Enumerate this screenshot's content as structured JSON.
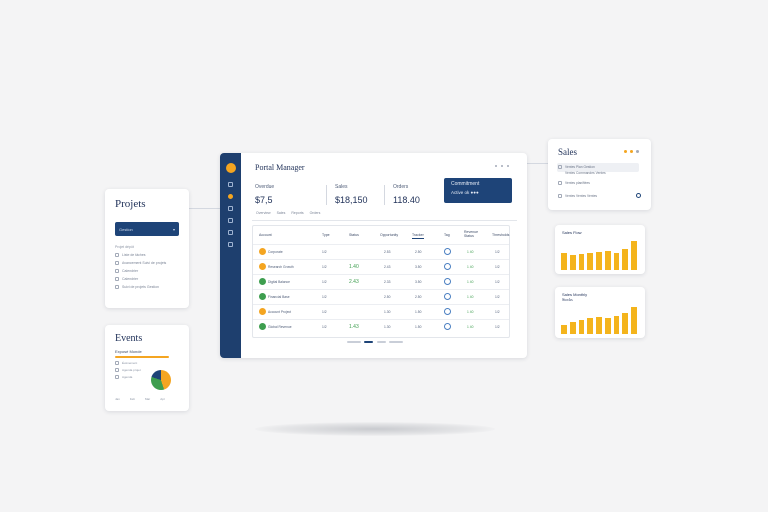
{
  "projects": {
    "title": "Projets",
    "select_label": "Gestion",
    "caption": "Projet dépôt",
    "items": [
      "Liste de tâches",
      "Avancement Suivi de projets",
      "Calendrier",
      "Calendrier",
      "Suivi de projets Gestion"
    ]
  },
  "events": {
    "title": "Events",
    "subtitle": "Exposé Monde",
    "items": [
      "Évènement",
      "Agenda projet",
      "Agenda"
    ],
    "footer": [
      "Jan",
      "Feb",
      "Mar",
      "Apr"
    ]
  },
  "dashboard": {
    "title": "Portal Manager",
    "kpis": [
      {
        "label": "Overdue",
        "value": "$7,5"
      },
      {
        "label": "Sales",
        "value": "$18,150"
      },
      {
        "label": "Orders",
        "value": "118.40"
      }
    ],
    "highlight": {
      "label": "Commitment",
      "value": "Active ok ●●●"
    },
    "subtabs": [
      "Overview",
      "Sales",
      "Reports",
      "Orders"
    ],
    "columns": [
      "Account",
      "Type",
      "Status",
      "Opportunity",
      "Tracker",
      "Tag",
      "Revenue Status",
      "Thresholds"
    ],
    "rows": [
      {
        "name": "Corporate",
        "type": "1/2",
        "amount": "",
        "opp": "2.53",
        "tracker": "2.50",
        "rev": "1 40",
        "thr": "1/2",
        "color": "#f4a521"
      },
      {
        "name": "Research Growth",
        "type": "1/2",
        "amount": "1.40",
        "opp": "2.43",
        "tracker": "3.50",
        "rev": "1 40",
        "thr": "1/2",
        "color": "#f4a521"
      },
      {
        "name": "Digital Balance",
        "type": "1/2",
        "amount": "2.43",
        "opp": "2.33",
        "tracker": "3.50",
        "rev": "1 40",
        "thr": "1/2",
        "color": "#3e9e4f"
      },
      {
        "name": "Financial Base",
        "type": "1/2",
        "amount": "",
        "opp": "2.50",
        "tracker": "2.50",
        "rev": "1 40",
        "thr": "1/2",
        "color": "#3e9e4f"
      },
      {
        "name": "Account Project",
        "type": "1/2",
        "amount": "",
        "opp": "1.30",
        "tracker": "1.50",
        "rev": "1 40",
        "thr": "1/2",
        "color": "#f4a521"
      },
      {
        "name": "Global Revenue",
        "type": "1/2",
        "amount": "1.43",
        "opp": "1.30",
        "tracker": "1.50",
        "rev": "1 40",
        "thr": "1/2",
        "color": "#3e9e4f"
      }
    ]
  },
  "sales": {
    "title": "Sales",
    "lines": [
      "Ventes Plan Gestion",
      "Ventes Commandes Ventes",
      "Ventes planifiées",
      "Ventes Ventes Ventes"
    ]
  },
  "flow": {
    "title": "Sales Flow",
    "levels": [
      0.6,
      0.52,
      0.55,
      0.58,
      0.62,
      0.64,
      0.58,
      0.72,
      1.0
    ]
  },
  "monthly": {
    "title": "Sales Monthly",
    "subtitle": "Stocks",
    "levels": [
      0.35,
      0.45,
      0.52,
      0.58,
      0.62,
      0.58,
      0.65,
      0.78,
      1.0
    ]
  },
  "colors": {
    "navy": "#1e4478",
    "accent": "#f4a521",
    "green": "#3e9e4f",
    "bar": "#f4b41c"
  }
}
